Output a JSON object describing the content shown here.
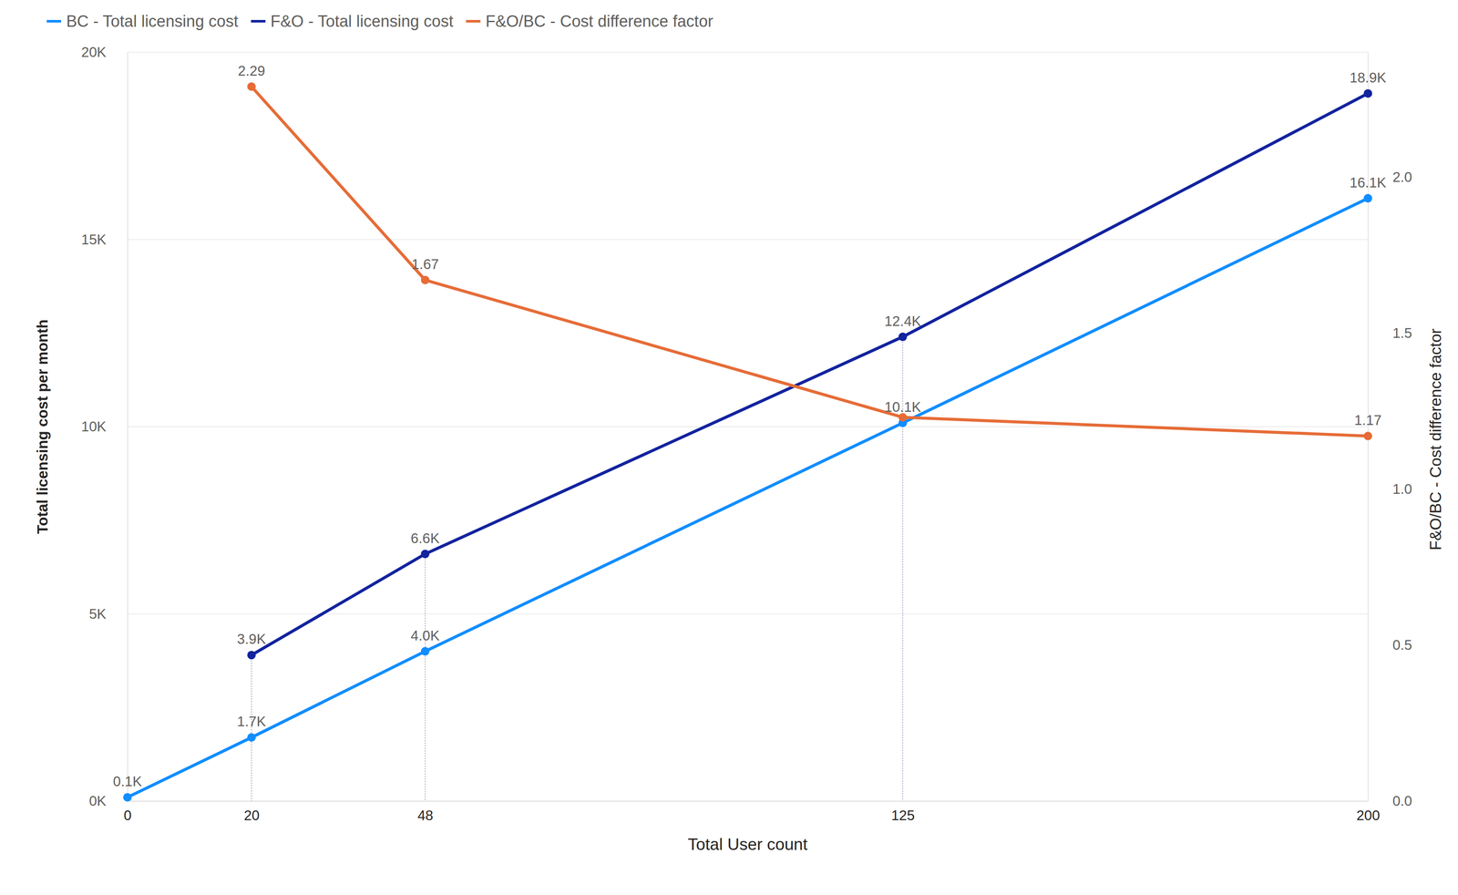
{
  "chart_data": {
    "type": "line",
    "x_label": "Total User count",
    "y_label": "Total licensing cost per month",
    "y2_label": "F&O/BC - Cost difference factor",
    "x": [
      0,
      20,
      48,
      125,
      200
    ],
    "xlim": [
      0,
      200
    ],
    "xticks": [
      0,
      20,
      48,
      125,
      200
    ],
    "ylim": [
      0,
      20000
    ],
    "yticks": [
      {
        "value": 0,
        "label": "0K"
      },
      {
        "value": 5000,
        "label": "5K"
      },
      {
        "value": 10000,
        "label": "10K"
      },
      {
        "value": 15000,
        "label": "15K"
      },
      {
        "value": 20000,
        "label": "20K"
      }
    ],
    "y2lim": [
      0,
      2.4
    ],
    "y2ticks": [
      {
        "value": 0,
        "label": "0.0"
      },
      0.5,
      {
        "value": 1,
        "label": "1.0"
      },
      1.5,
      {
        "value": 2,
        "label": "2.0"
      }
    ],
    "grid": true,
    "legend": "top-left",
    "data_labels": true,
    "marker": "circle",
    "series": [
      {
        "name": "BC - Total licensing cost",
        "color": "#118DFF",
        "values": [
          100,
          1700,
          4000,
          10100,
          16100
        ],
        "value_labels": [
          "0.1K",
          "1.7K",
          "4.0K",
          "10.1K",
          "16.1K"
        ]
      },
      {
        "name": "F&O - Total licensing cost",
        "color": "#12239E",
        "values": [
          null,
          3900,
          6600,
          12400,
          18900
        ],
        "value_labels": [
          null,
          "3.9K",
          "6.6K",
          "12.4K",
          "18.9K"
        ]
      },
      {
        "name": "F&O/BC - Cost difference factor",
        "color": "#E66C37",
        "axis": "y2",
        "values": [
          null,
          2.29,
          1.67,
          1.23,
          1.17
        ],
        "value_labels": [
          null,
          "2.29",
          "1.67",
          null,
          "1.17"
        ]
      }
    ]
  }
}
